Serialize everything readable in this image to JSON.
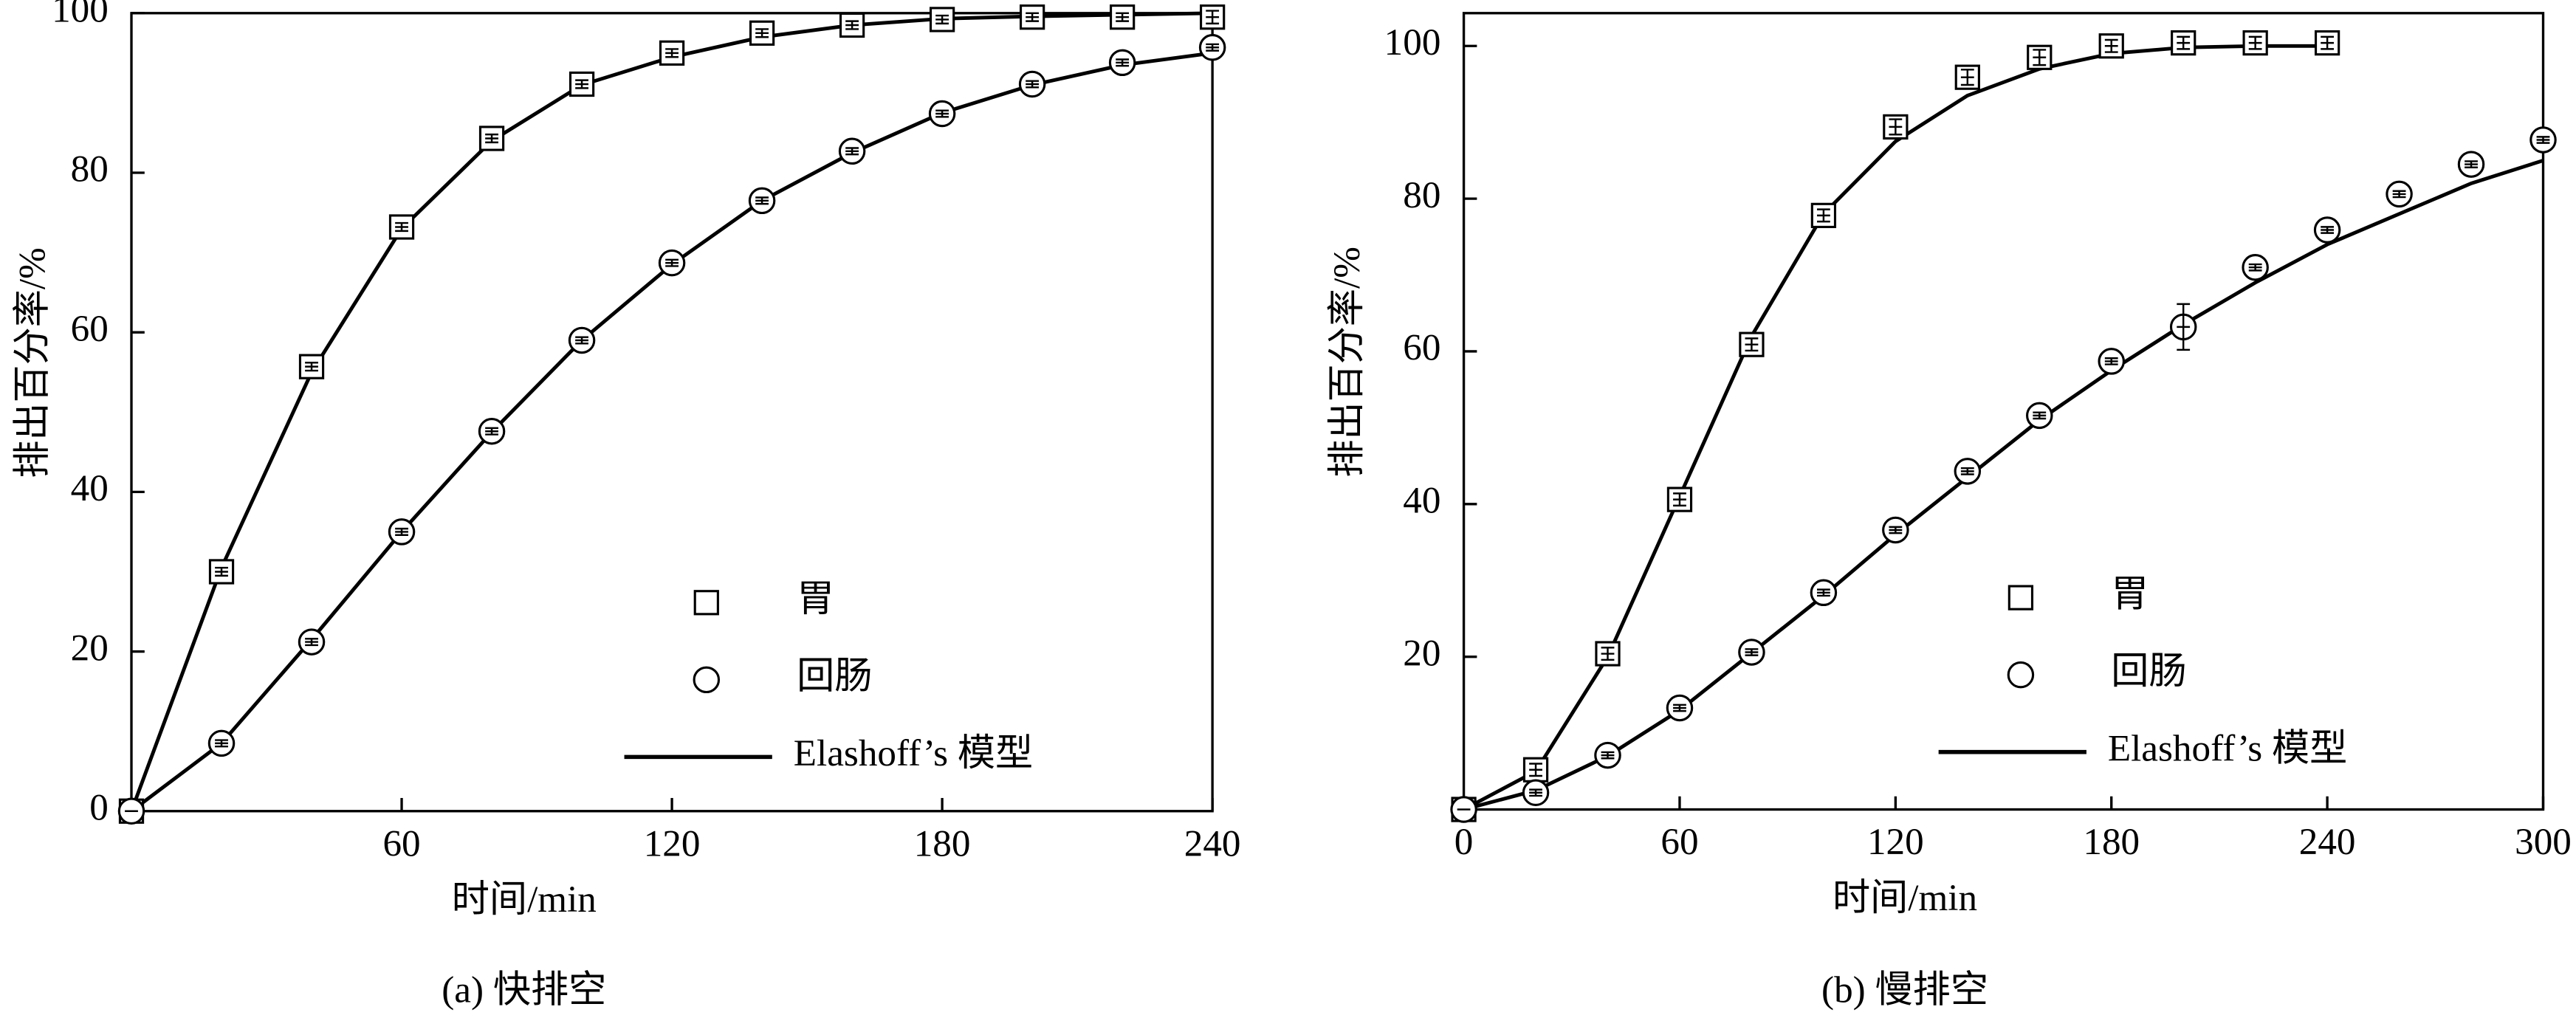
{
  "chart_data": [
    {
      "type": "line",
      "title": "(a) 快排空",
      "x_label": "时间/min",
      "y_label": "排出百分率/%",
      "xlim": [
        0,
        240
      ],
      "ylim": [
        0,
        100
      ],
      "xticks": [
        60,
        120,
        180,
        240
      ],
      "yticks": [
        0,
        20,
        40,
        60,
        80,
        100
      ],
      "legend": "lower right",
      "series": [
        {
          "name": "胃",
          "marker": "square",
          "color": "#000000",
          "x": [
            0,
            20,
            40,
            60,
            80,
            100,
            120,
            140,
            160,
            180,
            200,
            220,
            240
          ],
          "values": [
            0,
            30,
            55.7,
            73.2,
            84.3,
            91.1,
            95,
            97.5,
            98.5,
            99.2,
            99.5,
            99.5,
            99.5
          ],
          "errors": [
            0,
            0.5,
            0.5,
            0.5,
            0.5,
            0.5,
            0.5,
            0.5,
            0.5,
            0.5,
            0.5,
            0.5,
            0.8
          ]
        },
        {
          "name": "回肠",
          "marker": "circle",
          "color": "#000000",
          "x": [
            0,
            20,
            40,
            60,
            80,
            100,
            120,
            140,
            160,
            180,
            200,
            220,
            240
          ],
          "values": [
            0,
            8.5,
            21.2,
            35,
            47.6,
            59,
            68.7,
            76.5,
            82.7,
            87.4,
            91.1,
            93.8,
            95.7
          ],
          "errors": [
            0,
            0.4,
            0.4,
            0.4,
            0.4,
            0.4,
            0.4,
            0.4,
            0.4,
            0.4,
            0.4,
            0.4,
            0.4
          ]
        }
      ],
      "model": {
        "name": "Elashoff’s 模型",
        "color": "#000000",
        "series": [
          {
            "x": [
              0,
              20,
              40,
              60,
              80,
              100,
              120,
              140,
              160,
              180,
              200,
              220,
              240
            ],
            "values": [
              0,
              30.5,
              55,
              73,
              84,
              91,
              94.5,
              97,
              98.5,
              99.3,
              99.6,
              99.8,
              100
            ]
          },
          {
            "x": [
              0,
              20,
              40,
              60,
              80,
              100,
              120,
              140,
              160,
              180,
              200,
              220,
              240
            ],
            "values": [
              0,
              8.5,
              21.5,
              35,
              47.5,
              59,
              68.5,
              76.5,
              82.5,
              87.5,
              91,
              93.5,
              95
            ]
          }
        ]
      }
    },
    {
      "type": "line",
      "title": "(b) 慢排空",
      "x_label": "时间/min",
      "y_label": "排出百分率/%",
      "xlim": [
        0,
        300
      ],
      "ylim": [
        0,
        104.3
      ],
      "xticks": [
        0,
        60,
        120,
        180,
        240,
        300
      ],
      "yticks": [
        20,
        40,
        60,
        80,
        100
      ],
      "legend": "lower right",
      "series": [
        {
          "name": "胃",
          "marker": "square",
          "color": "#000000",
          "x": [
            0,
            20,
            40,
            60,
            80,
            100,
            120,
            140,
            160,
            180,
            200,
            220,
            240
          ],
          "values": [
            0,
            5.2,
            20.4,
            40.6,
            60.9,
            77.8,
            89.4,
            95.9,
            98.5,
            100,
            100.4,
            100.4,
            100.4
          ],
          "errors": [
            0,
            0.8,
            0.8,
            0.8,
            0.8,
            0.8,
            1,
            1,
            1,
            0.8,
            0.8,
            0.8,
            0.8
          ]
        },
        {
          "name": "回肠",
          "marker": "circle",
          "color": "#000000",
          "x": [
            0,
            20,
            40,
            60,
            80,
            100,
            120,
            140,
            160,
            180,
            200,
            220,
            240,
            260,
            280,
            300
          ],
          "values": [
            0,
            2.2,
            7.1,
            13.3,
            20.6,
            28.4,
            36.6,
            44.3,
            51.6,
            58.7,
            63.2,
            71,
            75.9,
            80.6,
            84.5,
            87.7
          ],
          "errors": [
            0,
            0.4,
            0.4,
            0.4,
            0.4,
            0.4,
            0.4,
            0.4,
            0.4,
            0.4,
            3,
            0.4,
            0.4,
            0.4,
            0.4,
            0.4
          ]
        }
      ],
      "model": {
        "name": "Elashoff’s 模型",
        "color": "#000000",
        "series": [
          {
            "x": [
              0,
              20,
              40,
              60,
              80,
              100,
              120,
              140,
              160,
              180,
              200,
              220,
              240
            ],
            "values": [
              0,
              5,
              20,
              41,
              62,
              78,
              87.5,
              93.5,
              97,
              99,
              99.8,
              100,
              100
            ]
          },
          {
            "x": [
              0,
              20,
              40,
              60,
              80,
              100,
              120,
              140,
              160,
              180,
              200,
              220,
              240,
              260,
              280,
              300
            ],
            "values": [
              0,
              2.5,
              7,
              13,
              20.5,
              28,
              36,
              43.5,
              51,
              57.5,
              63.5,
              69,
              74,
              78,
              82,
              85
            ]
          }
        ]
      }
    }
  ]
}
